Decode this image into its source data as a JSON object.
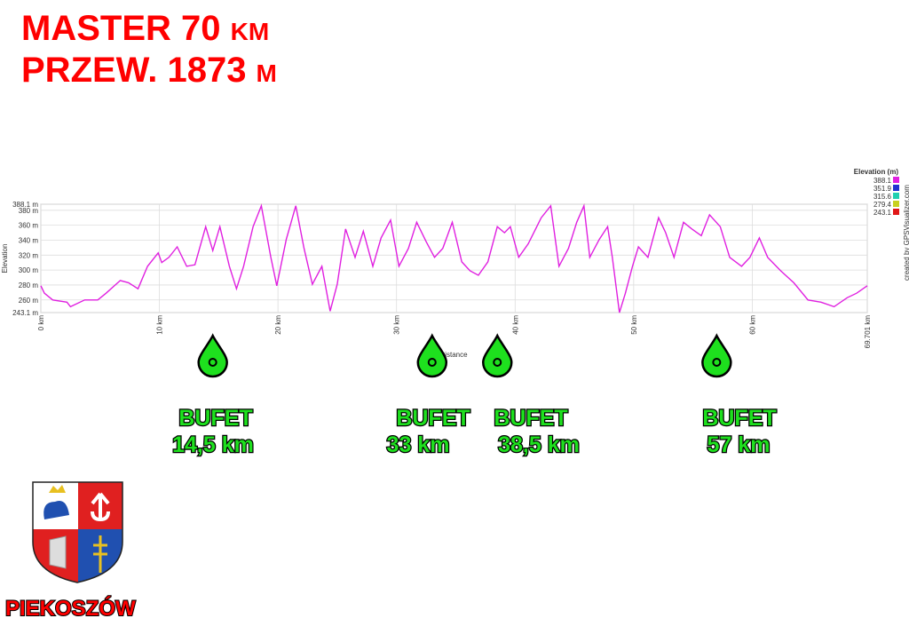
{
  "header": {
    "line1": "MASTER 70 km",
    "line2": "PRZEW. 1873 m"
  },
  "chart_data": {
    "type": "line",
    "ylabel": "Elevation",
    "xlabel": "Distance",
    "credit": "created by GPSVisualizer.com",
    "x": [
      0,
      0.3,
      1.0,
      2.2,
      2.5,
      3.7,
      4.8,
      5.5,
      6.7,
      7.4,
      8.2,
      9.0,
      9.9,
      10.2,
      10.8,
      11.5,
      12.3,
      13.0,
      13.9,
      14.5,
      15.1,
      15.9,
      16.5,
      17.1,
      17.9,
      18.6,
      19.4,
      19.9,
      20.7,
      21.5,
      22.2,
      22.9,
      23.7,
      24.4,
      25.0,
      25.7,
      26.5,
      27.2,
      28.0,
      28.7,
      29.5,
      30.2,
      31.0,
      31.7,
      32.5,
      33.2,
      33.9,
      34.7,
      35.5,
      36.2,
      36.9,
      37.7,
      38.5,
      39.1,
      39.6,
      40.3,
      41.1,
      42.2,
      43.0,
      43.7,
      44.5,
      45.2,
      45.8,
      46.3,
      47.1,
      47.8,
      48.2,
      48.8,
      49.3,
      49.9,
      50.4,
      51.2,
      52.1,
      52.7,
      53.4,
      54.2,
      54.9,
      55.7,
      56.4,
      57.3,
      58.1,
      59.1,
      59.8,
      60.6,
      61.3,
      62.4,
      63.5,
      64.7,
      65.8,
      66.9,
      68.0,
      68.8,
      69.701
    ],
    "values": [
      279,
      269,
      260,
      257,
      251,
      260,
      260,
      269,
      286,
      283,
      275,
      305,
      323,
      310,
      317,
      331,
      305,
      307,
      358,
      326,
      358,
      305,
      275,
      305,
      358,
      386,
      317,
      279,
      341,
      386,
      329,
      281,
      305,
      245,
      281,
      355,
      317,
      352,
      305,
      343,
      367,
      305,
      329,
      364,
      338,
      317,
      329,
      364,
      311,
      299,
      293,
      311,
      358,
      350,
      358,
      317,
      335,
      370,
      386,
      305,
      329,
      364,
      386,
      317,
      341,
      358,
      317,
      243,
      269,
      305,
      331,
      317,
      370,
      350,
      317,
      364,
      355,
      346,
      374,
      358,
      317,
      305,
      317,
      343,
      317,
      299,
      283,
      260,
      257,
      251,
      263,
      269,
      279
    ],
    "xlim": [
      0,
      69.701
    ],
    "ylim": [
      243.1,
      388.1
    ],
    "xticks": [
      {
        "value": 0,
        "label": "0 km"
      },
      {
        "value": 10,
        "label": "10 km"
      },
      {
        "value": 20,
        "label": "20 km"
      },
      {
        "value": 30,
        "label": "30 km"
      },
      {
        "value": 40,
        "label": "40 km"
      },
      {
        "value": 50,
        "label": "50 km"
      },
      {
        "value": 60,
        "label": "60 km"
      },
      {
        "value": 69.701,
        "label": "69.701 km"
      }
    ],
    "yticks": [
      {
        "value": 243.1,
        "label": "243.1 m"
      },
      {
        "value": 260,
        "label": "260 m"
      },
      {
        "value": 280,
        "label": "280 m"
      },
      {
        "value": 300,
        "label": "300 m"
      },
      {
        "value": 320,
        "label": "320 m"
      },
      {
        "value": 340,
        "label": "340 m"
      },
      {
        "value": 360,
        "label": "360 m"
      },
      {
        "value": 380,
        "label": "380 m"
      },
      {
        "value": 388.1,
        "label": "388.1 m"
      }
    ],
    "grid": true,
    "legend": {
      "title": "Elevation (m)",
      "items": [
        {
          "value": 388.1,
          "color": "#e020e0"
        },
        {
          "value": 351.9,
          "color": "#2030d0"
        },
        {
          "value": 315.6,
          "color": "#20d0b0"
        },
        {
          "value": 279.4,
          "color": "#c8d020"
        },
        {
          "value": 243.1,
          "color": "#e01818"
        }
      ]
    },
    "annotations": [
      {
        "x": 14.5,
        "title": "BUFET",
        "label": "14,5 km"
      },
      {
        "x": 33,
        "title": "BUFET",
        "label": "33 km"
      },
      {
        "x": 38.5,
        "title": "BUFET",
        "label": "38,5 km"
      },
      {
        "x": 57,
        "title": "BUFET",
        "label": "57 km"
      }
    ]
  },
  "logo": {
    "name": "PIEKOSZÓW"
  }
}
